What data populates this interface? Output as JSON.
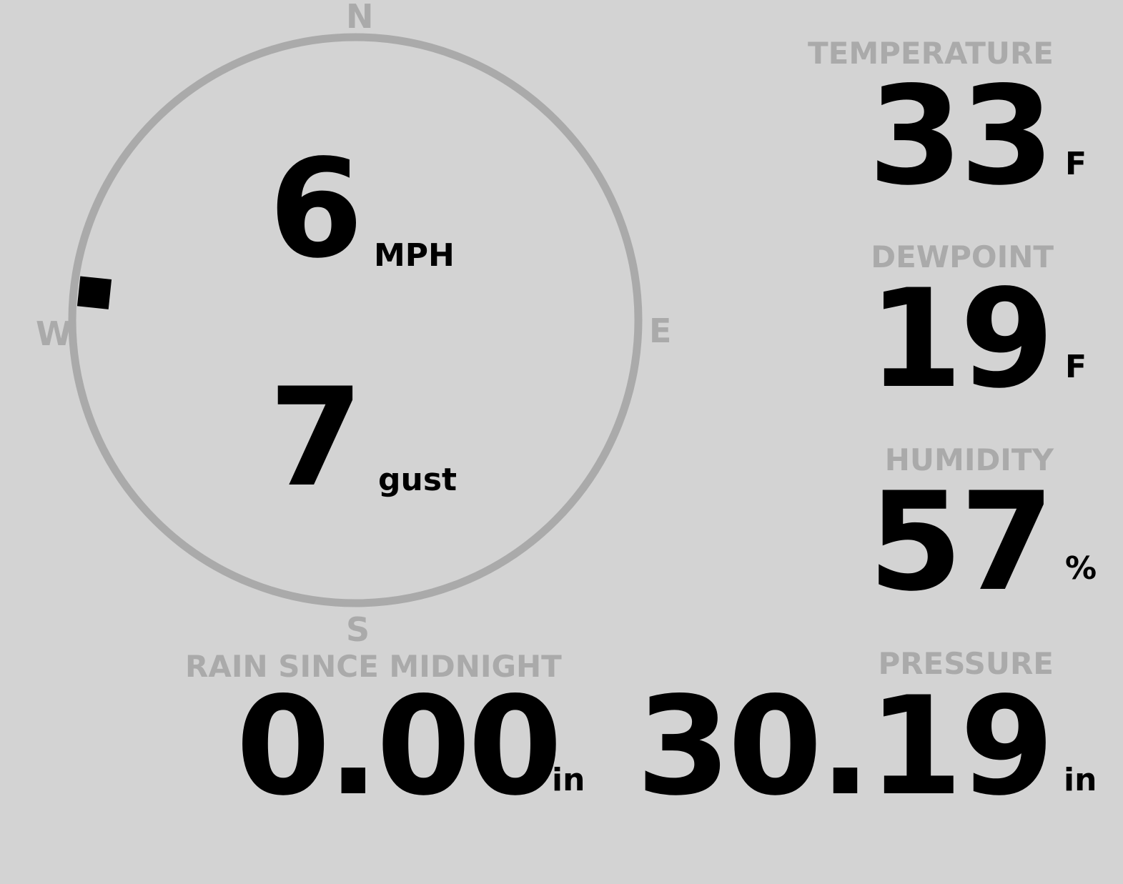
{
  "wind": {
    "speed": "6",
    "speed_unit": "MPH",
    "gust": "7",
    "gust_unit": "gust",
    "direction_deg": 276,
    "compass": {
      "n": "N",
      "e": "E",
      "s": "S",
      "w": "W"
    }
  },
  "colors": {
    "background": "#d3d3d3",
    "label": "#aaaaaa",
    "value": "#000000"
  },
  "temperature": {
    "label": "TEMPERATURE",
    "value": "33",
    "unit": "F"
  },
  "dewpoint": {
    "label": "DEWPOINT",
    "value": "19",
    "unit": "F"
  },
  "humidity": {
    "label": "HUMIDITY",
    "value": "57",
    "unit": "%"
  },
  "rain": {
    "label": "RAIN SINCE MIDNIGHT",
    "value": "0.00",
    "unit": "in"
  },
  "pressure": {
    "label": "PRESSURE",
    "value": "30.19",
    "unit": "in"
  }
}
